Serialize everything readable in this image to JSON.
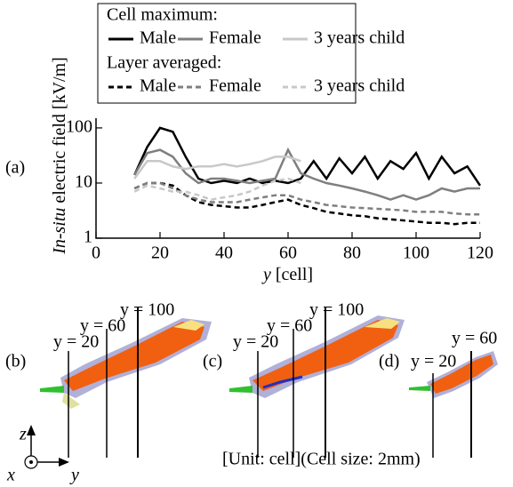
{
  "chart_data": {
    "type": "line",
    "panel_label": "(a)",
    "y_label_italic": "In-situ",
    "y_label_rest": " electric field [kV/m]",
    "x_label_italic": "y",
    "x_label_rest": " [cell]",
    "legend_headings": [
      "Cell maximum:",
      "Layer averaged:"
    ],
    "log_y": true,
    "xlim": [
      0,
      120
    ],
    "xticks": [
      0,
      20,
      40,
      60,
      80,
      100,
      120
    ],
    "ylim": [
      1,
      150
    ],
    "yticks": [
      1,
      10,
      100
    ],
    "x": [
      12,
      16,
      20,
      24,
      28,
      32,
      36,
      40,
      44,
      48,
      52,
      56,
      60,
      64,
      68,
      72,
      76,
      80,
      84,
      88,
      92,
      96,
      100,
      104,
      108,
      112,
      116,
      120
    ],
    "series": [
      {
        "name": "Male",
        "group": 0,
        "dash": false,
        "color": "#000000",
        "values": [
          14,
          45,
          100,
          85,
          30,
          12,
          10,
          11,
          10,
          12,
          10,
          11,
          10,
          12,
          25,
          12,
          28,
          15,
          30,
          12,
          25,
          18,
          35,
          12,
          30,
          15,
          20,
          9
        ]
      },
      {
        "name": "Female",
        "group": 0,
        "dash": false,
        "color": "#7f7f7f",
        "values": [
          14,
          35,
          40,
          30,
          15,
          10,
          12,
          12,
          11,
          10,
          11,
          12,
          40,
          15,
          12,
          10,
          9,
          8,
          7,
          6,
          5,
          6,
          5,
          6,
          8,
          7,
          8,
          8
        ]
      },
      {
        "name": "3 years child",
        "group": 0,
        "dash": false,
        "color": "#c8c8c8",
        "values": [
          12,
          25,
          25,
          20,
          18,
          20,
          20,
          22,
          20,
          22,
          25,
          30,
          30,
          25,
          null,
          null,
          null,
          null,
          null,
          null,
          null,
          null,
          null,
          null,
          null,
          null,
          null,
          null
        ]
      },
      {
        "name": "Male",
        "group": 1,
        "dash": true,
        "color": "#000000",
        "values": [
          8,
          10,
          10,
          9,
          6,
          4.5,
          4,
          3.8,
          3.6,
          3.6,
          4,
          4.5,
          5,
          4,
          3.5,
          3,
          2.8,
          2.6,
          2.5,
          2.3,
          2.2,
          2.1,
          2,
          1.9,
          1.9,
          1.8,
          1.9,
          1.9
        ]
      },
      {
        "name": "Female",
        "group": 1,
        "dash": true,
        "color": "#7f7f7f",
        "values": [
          8,
          10,
          10,
          8,
          6,
          5,
          4.5,
          4.5,
          4.5,
          5,
          5.5,
          6,
          6,
          5,
          4.5,
          4,
          3.8,
          3.6,
          3.5,
          3.4,
          3.3,
          3.2,
          3,
          3,
          3,
          2.8,
          2.7,
          2.7
        ]
      },
      {
        "name": "3 years child",
        "group": 1,
        "dash": true,
        "color": "#c8c8c8",
        "values": [
          7,
          9,
          8,
          7,
          7,
          6,
          5,
          5.5,
          6,
          7,
          9,
          11,
          12,
          10,
          null,
          null,
          null,
          null,
          null,
          null,
          null,
          null,
          null,
          null,
          null,
          null,
          null,
          null
        ]
      }
    ]
  },
  "panels": {
    "b": "(b)",
    "c": "(c)",
    "d": "(d)",
    "y20": "y = 20",
    "y60": "y = 60",
    "y100": "y = 100",
    "unit_note": "[Unit: cell](Cell size: 2mm)",
    "axis_z": "z",
    "axis_x": "x",
    "axis_y": "y"
  }
}
